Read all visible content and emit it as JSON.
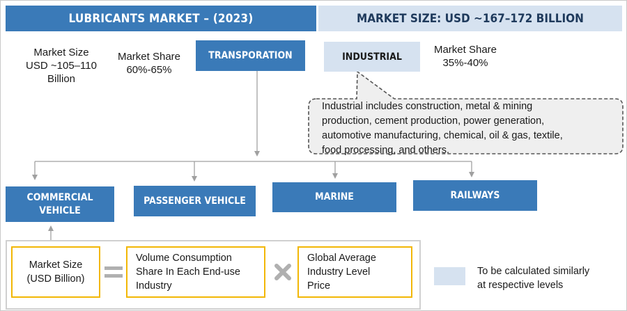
{
  "header": {
    "left_title": "LUBRICANTS MARKET – (2023)",
    "right_title": "MARKET SIZE: USD ~167–172 BILLION"
  },
  "transportation": {
    "market_size_line1": "Market Size",
    "market_size_line2": "USD ~105–110",
    "market_size_line3": "Billion",
    "share_line1": "Market Share",
    "share_line2": "60%-65%",
    "label": "TRANSPORATION"
  },
  "industrial": {
    "label": "INDUSTRIAL",
    "share_line1": "Market Share",
    "share_line2": "35%-40%",
    "callout_line1": "Industrial includes construction, metal & mining",
    "callout_line2": "production, cement production, power generation,",
    "callout_line3": "automotive manufacturing, chemical, oil & gas, textile,",
    "callout_line4": "food processing, and others."
  },
  "segments": {
    "commercial_line1": "COMMERCIAL",
    "commercial_line2": "VEHICLE",
    "passenger": "PASSENGER VEHICLE",
    "marine": "MARINE",
    "railways": "RAILWAYS"
  },
  "formula": {
    "market_size_line1": "Market Size",
    "market_size_line2": "(USD Billion)",
    "volume_line1": "Volume Consumption",
    "volume_line2": "Share In Each End-use",
    "volume_line3": "Industry",
    "price_line1": "Global Average",
    "price_line2": "Industry Level",
    "price_line3": "Price"
  },
  "legend": {
    "line1": "To be calculated similarly",
    "line2": "at respective levels"
  },
  "colors": {
    "primary_blue": "#3a7ab8",
    "light_blue": "#d6e2f0",
    "formula_border": "#f2b705",
    "operator_gray": "#b0b0b0"
  }
}
